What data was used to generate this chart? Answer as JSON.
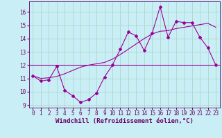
{
  "xlabel": "Windchill (Refroidissement éolien,°C)",
  "bg_color": "#caeef5",
  "line_color": "#990099",
  "grid_color": "#aad8cc",
  "hours": [
    0,
    1,
    2,
    3,
    4,
    5,
    6,
    7,
    8,
    9,
    10,
    11,
    12,
    13,
    14,
    15,
    16,
    17,
    18,
    19,
    20,
    21,
    22,
    23
  ],
  "windchill": [
    11.2,
    10.8,
    10.9,
    11.9,
    10.1,
    9.7,
    9.2,
    9.4,
    9.9,
    11.1,
    12.0,
    13.2,
    14.5,
    14.2,
    13.1,
    14.4,
    16.4,
    14.1,
    15.3,
    15.2,
    15.2,
    14.1,
    13.3,
    12.0
  ],
  "trend": [
    11.2,
    11.0,
    11.05,
    11.15,
    11.35,
    11.6,
    11.85,
    12.0,
    12.1,
    12.2,
    12.45,
    12.8,
    13.2,
    13.6,
    14.0,
    14.35,
    14.55,
    14.6,
    14.75,
    14.85,
    14.95,
    15.05,
    15.15,
    14.85
  ],
  "hline": 12.0,
  "ylim": [
    8.8,
    16.8
  ],
  "yticks": [
    9,
    10,
    11,
    12,
    13,
    14,
    15,
    16
  ],
  "xlim": [
    -0.5,
    23.5
  ],
  "font_color": "#660066",
  "tick_fontsize": 5.5,
  "label_fontsize": 6.5
}
